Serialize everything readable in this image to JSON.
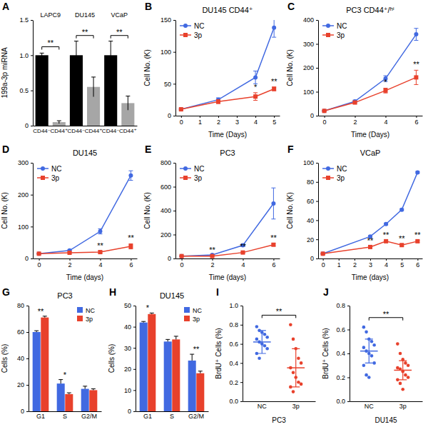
{
  "chart_data": [
    {
      "type": "bar",
      "label": "A",
      "ylabel": "199a-3p miRNA",
      "groups": [
        "LAPC9",
        "DU145",
        "VCaP"
      ],
      "categories": [
        "CD44⁻",
        "CD44⁺",
        "CD44⁻",
        "CD44⁺",
        "CD44⁻",
        "CD44⁺"
      ],
      "values": [
        1.0,
        0.05,
        1.0,
        0.55,
        1.0,
        0.32
      ],
      "errors": [
        0.03,
        0.02,
        0.2,
        0.14,
        0.2,
        0.1
      ],
      "colors": [
        "#000000",
        "#a6a6a6",
        "#000000",
        "#a6a6a6",
        "#000000",
        "#a6a6a6"
      ],
      "ylim": [
        0,
        1.5
      ],
      "yticks": [
        0,
        0.5,
        {
          "value": 1,
          "label": "1.0"
        },
        1.5
      ],
      "annotations": [
        {
          "text": "**",
          "between": [
            0,
            1
          ],
          "y": 1.12
        },
        {
          "text": "**",
          "between": [
            2,
            3
          ],
          "y": 1.28
        },
        {
          "text": "**",
          "between": [
            4,
            5
          ],
          "y": 1.28
        }
      ]
    },
    {
      "type": "line",
      "label": "B",
      "title": "DU145 CD44⁺",
      "xlabel": "Time (Days)",
      "ylabel": "Cell No. (K)",
      "x": [
        0,
        2,
        4,
        5
      ],
      "xlim": [
        -0.3,
        5.3
      ],
      "xticks": [
        0,
        1,
        2,
        3,
        4,
        5
      ],
      "ylim": [
        0,
        150
      ],
      "yticks": [
        0,
        50,
        100,
        150
      ],
      "legend": "top-left",
      "series": [
        {
          "name": "NC",
          "color": "#4169e1",
          "marker": "circle",
          "values": [
            10,
            25,
            60,
            138
          ],
          "errors": [
            1,
            3,
            10,
            15
          ]
        },
        {
          "name": "3p",
          "color": "#e8412c",
          "marker": "square",
          "values": [
            10,
            22,
            30,
            42
          ],
          "errors": [
            1,
            3,
            6,
            3
          ]
        }
      ],
      "annotations": [
        {
          "text": "*",
          "x": 4
        },
        {
          "text": "**",
          "x": 5
        }
      ]
    },
    {
      "type": "line",
      "label": "C",
      "title": "PC3 CD44⁺/ʰⁱ",
      "xlabel": "Time (Days)",
      "ylabel": "Cell No. (K)",
      "x": [
        0,
        2,
        4,
        6
      ],
      "xlim": [
        -0.4,
        6.4
      ],
      "xticks": [
        0,
        2,
        4,
        6
      ],
      "ylim": [
        0,
        400
      ],
      "yticks": [
        0,
        100,
        200,
        300,
        400
      ],
      "legend": "top-left",
      "series": [
        {
          "name": "NC",
          "color": "#4169e1",
          "marker": "circle",
          "values": [
            20,
            60,
            155,
            340
          ],
          "errors": [
            2,
            5,
            12,
            25
          ]
        },
        {
          "name": "3p",
          "color": "#e8412c",
          "marker": "square",
          "values": [
            20,
            55,
            105,
            160
          ],
          "errors": [
            2,
            5,
            10,
            30
          ]
        }
      ],
      "annotations": [
        {
          "text": "*",
          "x": 4
        },
        {
          "text": "**",
          "x": 6
        }
      ]
    },
    {
      "type": "line",
      "label": "D",
      "title": "DU145",
      "xlabel": "Time (days)",
      "ylabel": "Cell No. (K)",
      "x": [
        0,
        2,
        4,
        6
      ],
      "xlim": [
        -0.4,
        6.4
      ],
      "xticks": [
        0,
        2,
        4,
        6
      ],
      "ylim": [
        0,
        300
      ],
      "yticks": [
        0,
        100,
        200,
        300
      ],
      "legend": "top-left",
      "series": [
        {
          "name": "NC",
          "color": "#4169e1",
          "marker": "circle",
          "values": [
            15,
            25,
            85,
            260
          ],
          "errors": [
            1,
            2,
            8,
            15
          ]
        },
        {
          "name": "3p",
          "color": "#e8412c",
          "marker": "square",
          "values": [
            15,
            18,
            20,
            38
          ],
          "errors": [
            1,
            2,
            3,
            8
          ]
        }
      ],
      "annotations": [
        {
          "text": "**",
          "x": 4
        },
        {
          "text": "**",
          "x": 6
        }
      ]
    },
    {
      "type": "line",
      "label": "E",
      "title": "PC3",
      "xlabel": "Time (days)",
      "ylabel": "Cell No. (K)",
      "x": [
        0,
        2,
        4,
        6
      ],
      "xlim": [
        -0.4,
        6.4
      ],
      "xticks": [
        0,
        2,
        4,
        6
      ],
      "ylim": [
        0,
        800
      ],
      "yticks": [
        0,
        200,
        400,
        600,
        800
      ],
      "legend": "top-left",
      "series": [
        {
          "name": "NC",
          "color": "#4169e1",
          "marker": "circle",
          "values": [
            20,
            30,
            110,
            460
          ],
          "errors": [
            2,
            3,
            10,
            130
          ]
        },
        {
          "name": "3p",
          "color": "#e8412c",
          "marker": "square",
          "values": [
            20,
            20,
            50,
            115
          ],
          "errors": [
            2,
            2,
            5,
            10
          ]
        }
      ],
      "annotations": [
        {
          "text": "**",
          "x": 2
        },
        {
          "text": "**",
          "x": 4
        },
        {
          "text": "**",
          "x": 6
        }
      ]
    },
    {
      "type": "line",
      "label": "F",
      "title": "VCaP",
      "xlabel": "Time (days)",
      "ylabel": "Cell No. (K)",
      "x": [
        0,
        3,
        4,
        5,
        6
      ],
      "xlim": [
        -0.3,
        6.3
      ],
      "xticks": [
        0,
        1,
        2,
        3,
        4,
        5,
        6
      ],
      "ylim": [
        0,
        100
      ],
      "yticks": [
        0,
        20,
        40,
        60,
        80,
        100
      ],
      "legend": "top-left",
      "series": [
        {
          "name": "NC",
          "color": "#4169e1",
          "marker": "circle",
          "values": [
            5,
            23,
            36,
            51,
            90
          ],
          "errors": [
            0.5,
            1,
            1,
            1,
            1
          ]
        },
        {
          "name": "3p",
          "color": "#e8412c",
          "marker": "square",
          "values": [
            5,
            12,
            18,
            14,
            18
          ],
          "errors": [
            0.5,
            1,
            1,
            1,
            1
          ]
        }
      ],
      "annotations": [
        {
          "text": "**",
          "x": 3
        },
        {
          "text": "**",
          "x": 4
        },
        {
          "text": "**",
          "x": 5
        },
        {
          "text": "**",
          "x": 6
        }
      ]
    },
    {
      "type": "bar",
      "label": "G",
      "title": "PC3",
      "ylabel": "Cells (%)",
      "categories": [
        "G1",
        "S",
        "G2/M"
      ],
      "ylim": [
        0,
        80
      ],
      "yticks": [
        0,
        20,
        40,
        60,
        80
      ],
      "legend": "top-right",
      "series": [
        {
          "name": "NC",
          "color": "#4169e1",
          "values": [
            60,
            21,
            17
          ],
          "errors": [
            1,
            3,
            2
          ]
        },
        {
          "name": "3p",
          "color": "#e8412c",
          "values": [
            71,
            13,
            16
          ],
          "errors": [
            1,
            1,
            1
          ]
        }
      ],
      "annotations": [
        {
          "text": "**",
          "category": 0
        },
        {
          "text": "*",
          "category": 1
        }
      ]
    },
    {
      "type": "bar",
      "label": "H",
      "title": "DU145",
      "ylabel": "Cells (%)",
      "categories": [
        "G1",
        "S",
        "G2/M"
      ],
      "ylim": [
        0,
        50
      ],
      "yticks": [
        0,
        10,
        20,
        30,
        40,
        50
      ],
      "legend": "top-right",
      "series": [
        {
          "name": "NC",
          "color": "#4169e1",
          "values": [
            42,
            33,
            24
          ],
          "errors": [
            0.5,
            1,
            3
          ]
        },
        {
          "name": "3p",
          "color": "#e8412c",
          "values": [
            46,
            34,
            18
          ],
          "errors": [
            0.5,
            1.5,
            1
          ]
        }
      ],
      "annotations": [
        {
          "text": "*",
          "category": 0
        },
        {
          "text": "**",
          "category": 2
        }
      ]
    },
    {
      "type": "scatter",
      "label": "I",
      "xlabel": "PC3",
      "ylabel": "BrdU⁺ Cells (%)",
      "categories": [
        "NC",
        "3p"
      ],
      "ylim": [
        0,
        1
      ],
      "yticks": [
        {
          "value": 0,
          "label": "0.0"
        },
        0.2,
        0.4,
        0.6,
        0.8,
        {
          "value": 1,
          "label": "1.0"
        }
      ],
      "groups": [
        {
          "color": "#4169e1",
          "values": [
            0.78,
            0.74,
            0.72,
            0.7,
            0.67,
            0.65,
            0.62,
            0.6,
            0.58,
            0.55,
            0.5,
            0.45
          ],
          "mean": 0.62,
          "sd": 0.12
        },
        {
          "color": "#e8412c",
          "values": [
            0.8,
            0.65,
            0.55,
            0.45,
            0.4,
            0.35,
            0.3,
            0.25,
            0.2,
            0.18,
            0.15,
            0.1
          ],
          "mean": 0.35,
          "sd": 0.2
        }
      ],
      "annotations": [
        {
          "text": "**",
          "between": [
            0,
            1
          ],
          "y": 0.9
        }
      ]
    },
    {
      "type": "scatter",
      "label": "J",
      "xlabel": "DU145",
      "ylabel": "BrdU⁺ Cells (%)",
      "categories": [
        "NC",
        "3p"
      ],
      "ylim": [
        0,
        0.8
      ],
      "yticks": [
        {
          "value": 0,
          "label": "0.0"
        },
        0.2,
        0.4,
        0.6,
        0.8
      ],
      "groups": [
        {
          "color": "#4169e1",
          "values": [
            0.62,
            0.58,
            0.52,
            0.5,
            0.47,
            0.45,
            0.42,
            0.4,
            0.38,
            0.32,
            0.3,
            0.22,
            0.2
          ],
          "mean": 0.42,
          "sd": 0.1
        },
        {
          "color": "#e8412c",
          "values": [
            0.48,
            0.4,
            0.35,
            0.32,
            0.3,
            0.28,
            0.27,
            0.25,
            0.22,
            0.2,
            0.18,
            0.15,
            0.1
          ],
          "mean": 0.26,
          "sd": 0.08
        }
      ],
      "annotations": [
        {
          "text": "**",
          "between": [
            0,
            1
          ],
          "y": 0.7
        }
      ]
    }
  ]
}
